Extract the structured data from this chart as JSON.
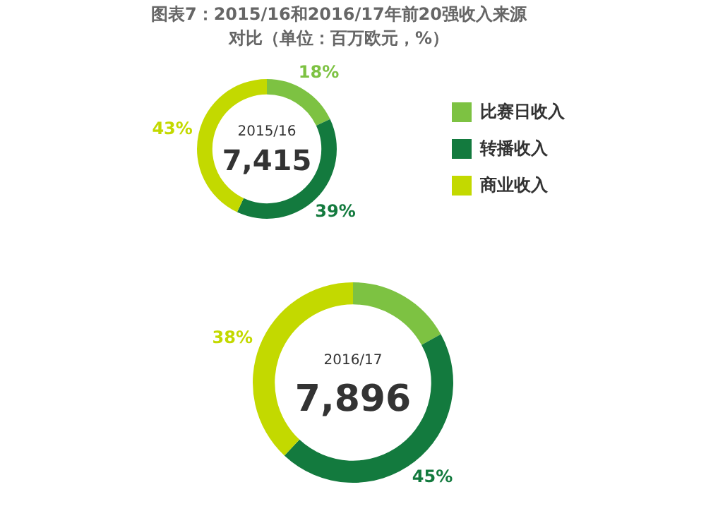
{
  "chart_data": [
    {
      "type": "donut",
      "title": "图表7：2015/16和2016/17年前20强收入来源对比（单位：百万欧元，%）",
      "categories": [
        "比赛日收入",
        "转播收入",
        "商业收入"
      ],
      "values": [
        18,
        39,
        43
      ],
      "colors": [
        "#7dc242",
        "#137a3e",
        "#c3d900"
      ],
      "value_labels": [
        "18%",
        "39%",
        "43%"
      ],
      "annotations": [
        "2015/16",
        "7,415"
      ],
      "legend": "right"
    },
    {
      "type": "donut",
      "categories": [
        null,
        null,
        null
      ],
      "values": [
        17,
        45,
        38
      ],
      "colors": [
        "#7dc242",
        "#137a3e",
        "#c3d900"
      ],
      "value_labels": [
        null,
        "45%",
        "38%"
      ],
      "annotations": [
        "2016/17",
        "7,896"
      ]
    }
  ]
}
